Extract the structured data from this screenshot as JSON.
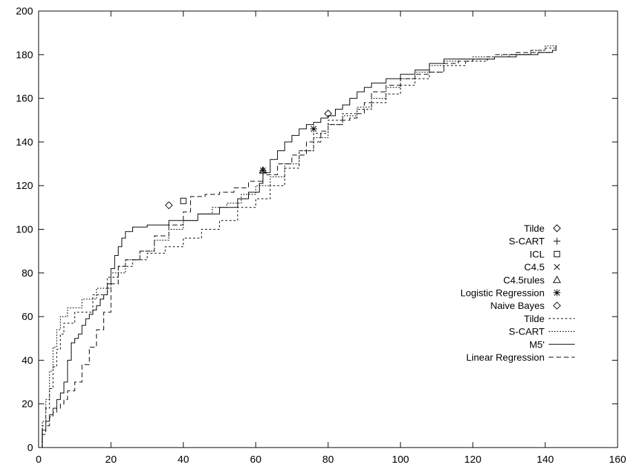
{
  "chart_data": {
    "type": "line",
    "xlim": [
      0,
      160
    ],
    "ylim": [
      0,
      200
    ],
    "x_ticks": [
      0,
      20,
      40,
      60,
      80,
      100,
      120,
      140,
      160
    ],
    "y_ticks": [
      0,
      20,
      40,
      60,
      80,
      100,
      120,
      140,
      160,
      180,
      200
    ],
    "grid": false,
    "legend_position": "center-right",
    "points": [
      {
        "name": "Tilde",
        "marker": "diamond",
        "x": 80,
        "y": 153
      },
      {
        "name": "S-CART",
        "marker": "plus",
        "x": 62,
        "y": 127
      },
      {
        "name": "ICL",
        "marker": "square",
        "x": 40,
        "y": 113
      },
      {
        "name": "C4.5",
        "marker": "cross",
        "x": 62,
        "y": 127
      },
      {
        "name": "C4.5rules",
        "marker": "triangle",
        "x": 62,
        "y": 127
      },
      {
        "name": "Logistic Regression",
        "marker": "star",
        "x": 76,
        "y": 146
      },
      {
        "name": "Naive Bayes",
        "marker": "diamond",
        "x": 36,
        "y": 111
      }
    ],
    "series": [
      {
        "name": "Tilde",
        "dash": "3,3",
        "points": [
          [
            0,
            0
          ],
          [
            1,
            10
          ],
          [
            2,
            18
          ],
          [
            3,
            27
          ],
          [
            4,
            37
          ],
          [
            5,
            45
          ],
          [
            6,
            52
          ],
          [
            7,
            57
          ],
          [
            10,
            62
          ],
          [
            15,
            70
          ],
          [
            19,
            78
          ],
          [
            22,
            83
          ],
          [
            26,
            86
          ],
          [
            30,
            89
          ],
          [
            35,
            92
          ],
          [
            40,
            96
          ],
          [
            45,
            100
          ],
          [
            50,
            104
          ],
          [
            55,
            110
          ],
          [
            60,
            114
          ],
          [
            64,
            120
          ],
          [
            68,
            128
          ],
          [
            72,
            136
          ],
          [
            76,
            144
          ],
          [
            80,
            150
          ],
          [
            84,
            153
          ],
          [
            88,
            155
          ],
          [
            92,
            158
          ],
          [
            96,
            162
          ],
          [
            100,
            166
          ],
          [
            104,
            169
          ],
          [
            108,
            172
          ],
          [
            112,
            175
          ],
          [
            118,
            177
          ],
          [
            124,
            179
          ],
          [
            130,
            180
          ],
          [
            136,
            182
          ],
          [
            140,
            183
          ],
          [
            143,
            184
          ]
        ]
      },
      {
        "name": "S-CART",
        "dash": "2,2",
        "points": [
          [
            0,
            0
          ],
          [
            1,
            12
          ],
          [
            2,
            22
          ],
          [
            3,
            35
          ],
          [
            4,
            46
          ],
          [
            5,
            54
          ],
          [
            6,
            60
          ],
          [
            8,
            64
          ],
          [
            12,
            68
          ],
          [
            16,
            73
          ],
          [
            20,
            80
          ],
          [
            24,
            86
          ],
          [
            28,
            90
          ],
          [
            32,
            95
          ],
          [
            36,
            100
          ],
          [
            40,
            104
          ],
          [
            44,
            107
          ],
          [
            48,
            110
          ],
          [
            52,
            112
          ],
          [
            56,
            116
          ],
          [
            60,
            120
          ],
          [
            64,
            124
          ],
          [
            68,
            130
          ],
          [
            72,
            136
          ],
          [
            76,
            142
          ],
          [
            80,
            148
          ],
          [
            84,
            152
          ],
          [
            88,
            156
          ],
          [
            92,
            160
          ],
          [
            96,
            165
          ],
          [
            100,
            169
          ],
          [
            104,
            172
          ],
          [
            108,
            175
          ],
          [
            112,
            177
          ],
          [
            116,
            178
          ],
          [
            120,
            179
          ],
          [
            128,
            180
          ],
          [
            136,
            182
          ],
          [
            140,
            184
          ],
          [
            143,
            185
          ]
        ]
      },
      {
        "name": "M5'",
        "dash": "",
        "points": [
          [
            0,
            0
          ],
          [
            1,
            8
          ],
          [
            2,
            12
          ],
          [
            3,
            15
          ],
          [
            4,
            18
          ],
          [
            5,
            22
          ],
          [
            6,
            25
          ],
          [
            7,
            30
          ],
          [
            8,
            40
          ],
          [
            9,
            48
          ],
          [
            10,
            50
          ],
          [
            11,
            52
          ],
          [
            12,
            56
          ],
          [
            13,
            59
          ],
          [
            14,
            61
          ],
          [
            15,
            63
          ],
          [
            16,
            65
          ],
          [
            17,
            68
          ],
          [
            18,
            70
          ],
          [
            19,
            75
          ],
          [
            20,
            82
          ],
          [
            21,
            88
          ],
          [
            22,
            92
          ],
          [
            23,
            96
          ],
          [
            24,
            99
          ],
          [
            26,
            101
          ],
          [
            30,
            102
          ],
          [
            36,
            104
          ],
          [
            44,
            107
          ],
          [
            50,
            110
          ],
          [
            55,
            114
          ],
          [
            58,
            117
          ],
          [
            61,
            121
          ],
          [
            62,
            126
          ],
          [
            64,
            132
          ],
          [
            66,
            136
          ],
          [
            68,
            140
          ],
          [
            70,
            143
          ],
          [
            72,
            146
          ],
          [
            74,
            148
          ],
          [
            76,
            149
          ],
          [
            78,
            151
          ],
          [
            80,
            152
          ],
          [
            82,
            155
          ],
          [
            84,
            157
          ],
          [
            86,
            160
          ],
          [
            88,
            163
          ],
          [
            90,
            165
          ],
          [
            92,
            167
          ],
          [
            96,
            169
          ],
          [
            100,
            171
          ],
          [
            104,
            173
          ],
          [
            108,
            176
          ],
          [
            112,
            178
          ],
          [
            116,
            178
          ],
          [
            120,
            178
          ],
          [
            126,
            179
          ],
          [
            132,
            180
          ],
          [
            138,
            181
          ],
          [
            142,
            182
          ],
          [
            143,
            184
          ]
        ]
      },
      {
        "name": "Linear Regression",
        "dash": "7,4",
        "points": [
          [
            0,
            0
          ],
          [
            1,
            6
          ],
          [
            2,
            10
          ],
          [
            3,
            14
          ],
          [
            4,
            16
          ],
          [
            5,
            18
          ],
          [
            6,
            20
          ],
          [
            7,
            22
          ],
          [
            8,
            26
          ],
          [
            10,
            30
          ],
          [
            12,
            38
          ],
          [
            14,
            46
          ],
          [
            16,
            54
          ],
          [
            18,
            62
          ],
          [
            20,
            75
          ],
          [
            22,
            83
          ],
          [
            24,
            86
          ],
          [
            28,
            90
          ],
          [
            32,
            97
          ],
          [
            36,
            102
          ],
          [
            40,
            108
          ],
          [
            42,
            115
          ],
          [
            46,
            116
          ],
          [
            50,
            117
          ],
          [
            54,
            119
          ],
          [
            58,
            122
          ],
          [
            62,
            125
          ],
          [
            66,
            130
          ],
          [
            70,
            134
          ],
          [
            74,
            140
          ],
          [
            78,
            145
          ],
          [
            80,
            148
          ],
          [
            84,
            150
          ],
          [
            86,
            151
          ],
          [
            88,
            153
          ],
          [
            90,
            158
          ],
          [
            92,
            163
          ],
          [
            96,
            166
          ],
          [
            100,
            169
          ],
          [
            104,
            171
          ],
          [
            108,
            172
          ],
          [
            112,
            176
          ],
          [
            116,
            177
          ],
          [
            120,
            178
          ],
          [
            126,
            180
          ],
          [
            132,
            181
          ],
          [
            138,
            181
          ],
          [
            142,
            182
          ],
          [
            143,
            183
          ]
        ]
      }
    ]
  }
}
